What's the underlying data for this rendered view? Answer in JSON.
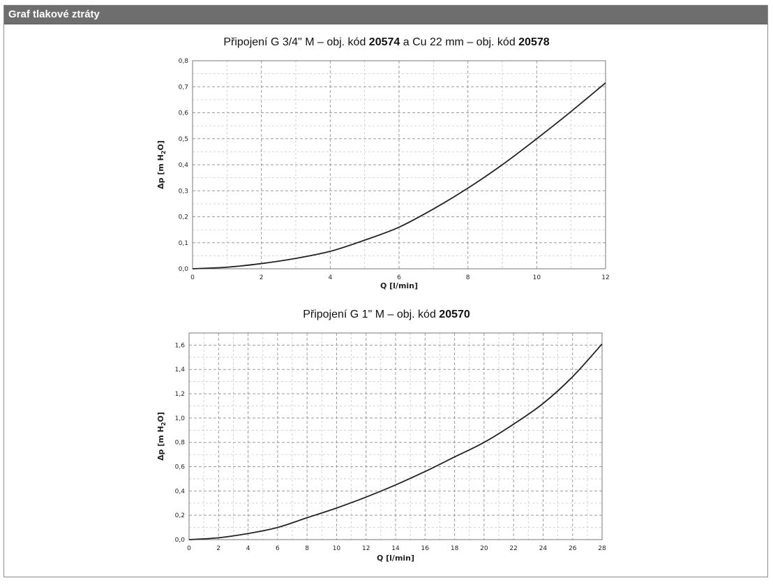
{
  "header": {
    "title": "Graf tlakové ztráty"
  },
  "chart_data": [
    {
      "type": "line",
      "title_parts": [
        "Připojení G 3/4\" M – obj. kód ",
        "20574",
        " a Cu 22 mm – obj. kód ",
        "20578"
      ],
      "title_bold": [
        false,
        true,
        false,
        true
      ],
      "xlabel": "Q [l/min]",
      "ylabel": "Δp [m H",
      "ylabel_sub": "2",
      "ylabel_end": "O]",
      "xlim": [
        0,
        12
      ],
      "ylim": [
        0,
        0.8
      ],
      "xticks": [
        0,
        2,
        4,
        6,
        8,
        10,
        12
      ],
      "xtick_labels": [
        "0",
        "2",
        "4",
        "6",
        "8",
        "10",
        "12"
      ],
      "yticks": [
        0,
        0.1,
        0.2,
        0.3,
        0.4,
        0.5,
        0.6,
        0.7,
        0.8
      ],
      "ytick_labels": [
        "0,0",
        "0,1",
        "0,2",
        "0,3",
        "0,4",
        "0,5",
        "0,6",
        "0,7",
        "0,8"
      ],
      "grid": true,
      "series": [
        {
          "color": "#222222",
          "x": [
            0,
            1,
            2,
            3,
            4,
            5,
            6,
            7,
            8,
            9,
            10,
            11,
            12
          ],
          "y": [
            0.0,
            0.006,
            0.02,
            0.04,
            0.067,
            0.11,
            0.16,
            0.23,
            0.31,
            0.4,
            0.5,
            0.605,
            0.715
          ]
        }
      ]
    },
    {
      "type": "line",
      "title_parts": [
        "Připojení G 1\" M – obj. kód ",
        "20570"
      ],
      "title_bold": [
        false,
        true
      ],
      "xlabel": "Q [l/min]",
      "ylabel": "Δp [m H",
      "ylabel_sub": "2",
      "ylabel_end": "O]",
      "xlim": [
        0,
        28
      ],
      "ylim": [
        0,
        1.7
      ],
      "xticks": [
        0,
        2,
        4,
        6,
        8,
        10,
        12,
        14,
        16,
        18,
        20,
        22,
        24,
        26,
        28
      ],
      "xtick_labels": [
        "0",
        "2",
        "4",
        "6",
        "8",
        "10",
        "12",
        "14",
        "16",
        "18",
        "20",
        "22",
        "24",
        "26",
        "28"
      ],
      "yticks": [
        0,
        0.2,
        0.4,
        0.6,
        0.8,
        1.0,
        1.2,
        1.4,
        1.6
      ],
      "ytick_labels": [
        "0,0",
        "0,2",
        "0,4",
        "0,6",
        "0,8",
        "1,0",
        "1,2",
        "1,4",
        "1,6"
      ],
      "grid": true,
      "series": [
        {
          "color": "#222222",
          "x": [
            0,
            2,
            4,
            6,
            8,
            10,
            12,
            14,
            16,
            18,
            20,
            22,
            24,
            26,
            28
          ],
          "y": [
            0.0,
            0.015,
            0.05,
            0.1,
            0.18,
            0.26,
            0.35,
            0.45,
            0.56,
            0.68,
            0.8,
            0.95,
            1.12,
            1.34,
            1.61
          ]
        }
      ]
    }
  ]
}
